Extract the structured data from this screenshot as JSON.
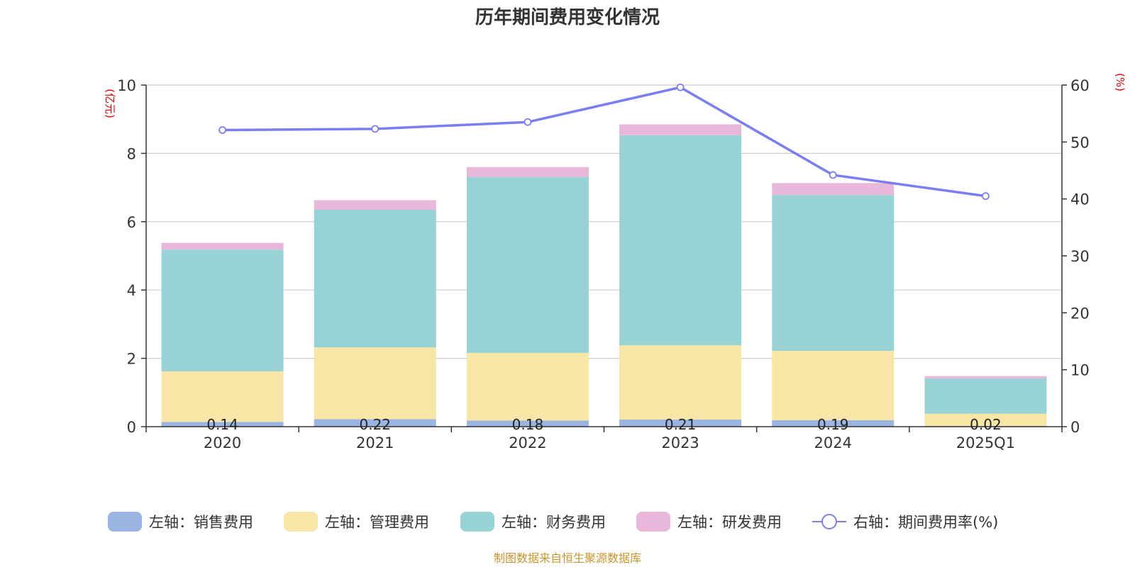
{
  "chart_data": {
    "type": "bar",
    "stacked": true,
    "title": "历年期间费用变化情况",
    "categories": [
      "2020",
      "2021",
      "2022",
      "2023",
      "2024",
      "2025Q1"
    ],
    "left_axis": {
      "unit": "(亿元)",
      "min": 0,
      "max": 10,
      "ticks": [
        "0",
        "2",
        "4",
        "6",
        "8",
        "10"
      ]
    },
    "right_axis": {
      "unit": "(%)",
      "min": 0,
      "max": 60,
      "ticks": [
        "0",
        "10",
        "20",
        "30",
        "40",
        "50",
        "60"
      ]
    },
    "series": [
      {
        "name": "左轴：销售费用",
        "axis": "left",
        "kind": "bar",
        "color": "#9bb5e2",
        "values": [
          0.14,
          0.22,
          0.18,
          0.21,
          0.19,
          0.02
        ],
        "labels": [
          "0.14",
          "0.22",
          "0.18",
          "0.21",
          "0.19",
          "0.02"
        ]
      },
      {
        "name": "左轴：管理费用",
        "axis": "left",
        "kind": "bar",
        "color": "#f7e6a6",
        "values": [
          1.48,
          2.1,
          1.98,
          2.17,
          2.03,
          0.36
        ]
      },
      {
        "name": "左轴：财务费用",
        "axis": "left",
        "kind": "bar",
        "color": "#97d3d4",
        "values": [
          3.56,
          4.03,
          5.15,
          6.15,
          4.56,
          1.03
        ]
      },
      {
        "name": "左轴：研发费用",
        "axis": "left",
        "kind": "bar",
        "color": "#e8b7d9",
        "values": [
          0.2,
          0.28,
          0.29,
          0.32,
          0.35,
          0.07
        ]
      },
      {
        "name": "右轴：期间费用率(%)",
        "axis": "right",
        "kind": "line",
        "color": "#7b7ef0",
        "values": [
          52.1,
          52.3,
          53.5,
          59.6,
          44.2,
          40.5
        ]
      }
    ],
    "grid": true,
    "legend_position": "bottom"
  },
  "source": "制图数据来自恒生聚源数据库"
}
